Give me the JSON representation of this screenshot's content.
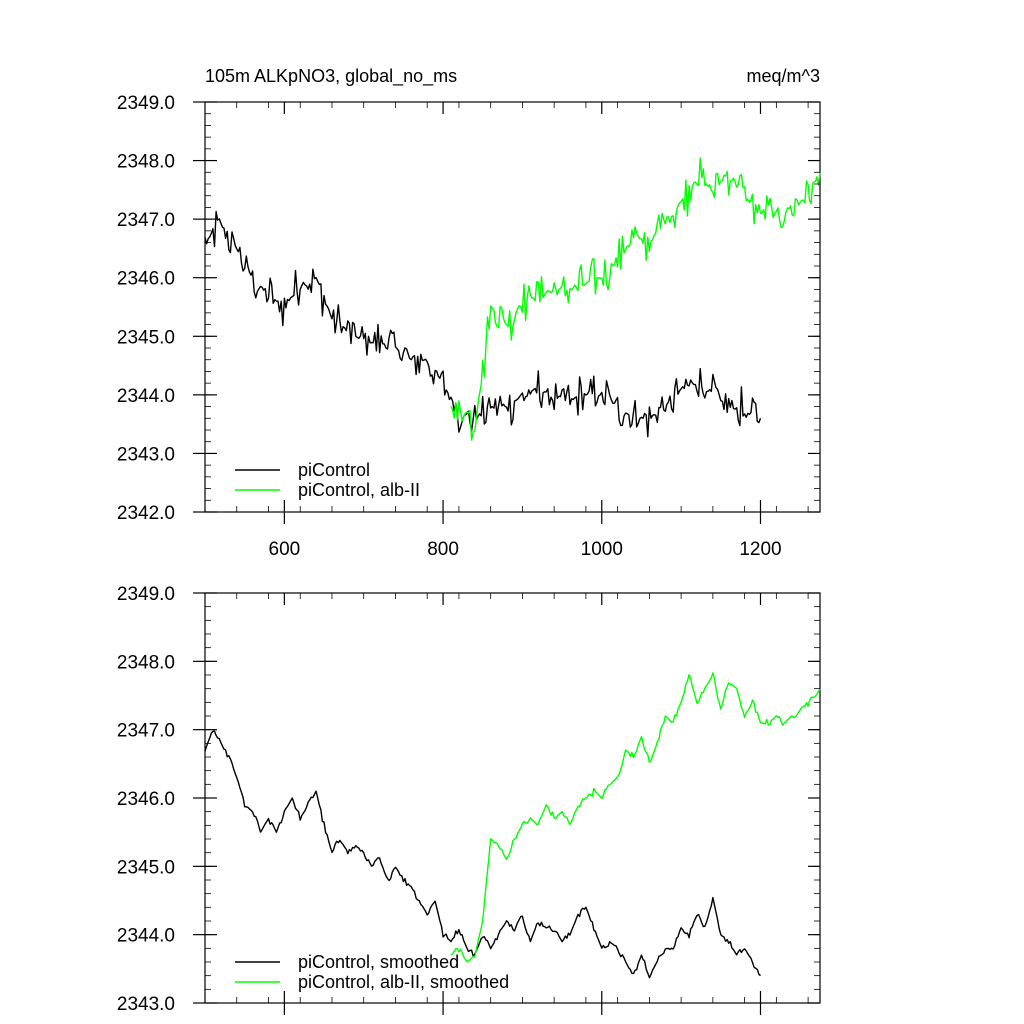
{
  "header": {
    "title_left": "105m ALKpNO3, global_no_ms",
    "title_right": "meq/m^3"
  },
  "chart_data": [
    {
      "type": "line",
      "xlim": [
        500,
        1275
      ],
      "ylim": [
        2342.0,
        2349.0
      ],
      "x_ticks": [
        600,
        800,
        1000,
        1200
      ],
      "x_tick_labels": [
        "600",
        "800",
        "1000",
        "1200"
      ],
      "y_ticks": [
        2342.0,
        2343.0,
        2344.0,
        2345.0,
        2346.0,
        2347.0,
        2348.0,
        2349.0
      ],
      "y_tick_labels": [
        "2342.0",
        "2343.0",
        "2344.0",
        "2345.0",
        "2346.0",
        "2347.0",
        "2348.0",
        "2349.0"
      ],
      "legend_position": "bottom-left",
      "series": [
        {
          "name": "piControl",
          "color": "#000000",
          "x": [
            500,
            520,
            540,
            560,
            580,
            600,
            620,
            640,
            660,
            680,
            700,
            720,
            740,
            760,
            780,
            800,
            820,
            840,
            860,
            880,
            900,
            920,
            940,
            960,
            980,
            1000,
            1020,
            1040,
            1060,
            1080,
            1100,
            1120,
            1140,
            1160,
            1180,
            1200
          ],
          "y": [
            2346.6,
            2346.9,
            2346.5,
            2346.0,
            2345.7,
            2345.5,
            2345.9,
            2346.0,
            2345.3,
            2345.1,
            2344.9,
            2344.9,
            2344.8,
            2344.6,
            2344.6,
            2344.2,
            2343.7,
            2343.6,
            2343.8,
            2343.8,
            2344.0,
            2344.1,
            2344.0,
            2343.9,
            2344.0,
            2344.0,
            2343.8,
            2343.6,
            2343.6,
            2343.8,
            2344.1,
            2344.2,
            2344.0,
            2343.8,
            2343.7,
            2343.6
          ]
        },
        {
          "name": "piControl, alb-II",
          "color": "#00ff00",
          "x": [
            810,
            820,
            830,
            840,
            850,
            860,
            870,
            880,
            900,
            920,
            940,
            960,
            980,
            1000,
            1020,
            1040,
            1060,
            1080,
            1100,
            1120,
            1140,
            1160,
            1180,
            1200,
            1220,
            1240,
            1260,
            1275
          ],
          "y": [
            2343.8,
            2343.6,
            2343.7,
            2343.5,
            2344.4,
            2345.5,
            2345.4,
            2345.2,
            2345.6,
            2345.7,
            2345.8,
            2345.8,
            2345.9,
            2346.0,
            2346.3,
            2346.7,
            2346.6,
            2347.0,
            2347.3,
            2347.7,
            2347.5,
            2347.8,
            2347.4,
            2347.1,
            2347.1,
            2347.2,
            2347.4,
            2347.8
          ]
        }
      ]
    },
    {
      "type": "line",
      "xlim": [
        500,
        1275
      ],
      "ylim": [
        2343.0,
        2349.0
      ],
      "x_ticks": [
        600,
        800,
        1000,
        1200
      ],
      "y_ticks": [
        2343.0,
        2344.0,
        2345.0,
        2346.0,
        2347.0,
        2348.0,
        2349.0
      ],
      "y_tick_labels": [
        "2343.0",
        "2344.0",
        "2345.0",
        "2346.0",
        "2347.0",
        "2348.0",
        "2349.0"
      ],
      "legend_position": "bottom-left",
      "series": [
        {
          "name": "piControl, smoothed",
          "color": "#000000",
          "x": [
            500,
            510,
            520,
            530,
            540,
            550,
            560,
            570,
            580,
            590,
            600,
            610,
            620,
            630,
            640,
            650,
            660,
            670,
            680,
            690,
            700,
            710,
            720,
            730,
            740,
            750,
            760,
            770,
            780,
            790,
            800,
            810,
            820,
            830,
            840,
            850,
            860,
            870,
            880,
            890,
            900,
            910,
            920,
            930,
            940,
            950,
            960,
            970,
            980,
            990,
            1000,
            1010,
            1020,
            1030,
            1040,
            1050,
            1060,
            1070,
            1080,
            1090,
            1100,
            1110,
            1120,
            1130,
            1140,
            1150,
            1160,
            1170,
            1180,
            1190,
            1200
          ],
          "y": [
            2346.7,
            2347.0,
            2346.8,
            2346.6,
            2346.3,
            2345.9,
            2345.8,
            2345.5,
            2345.7,
            2345.5,
            2345.8,
            2346.0,
            2345.7,
            2345.9,
            2346.1,
            2345.6,
            2345.2,
            2345.4,
            2345.2,
            2345.3,
            2345.2,
            2345.0,
            2345.1,
            2344.8,
            2345.0,
            2344.8,
            2344.7,
            2344.5,
            2344.3,
            2344.5,
            2344.0,
            2343.9,
            2344.1,
            2343.8,
            2343.7,
            2344.0,
            2343.8,
            2344.0,
            2344.2,
            2344.1,
            2344.3,
            2343.9,
            2344.2,
            2344.1,
            2344.1,
            2343.9,
            2344.0,
            2344.3,
            2344.4,
            2344.1,
            2343.8,
            2343.9,
            2343.8,
            2343.6,
            2343.4,
            2343.7,
            2343.4,
            2343.6,
            2343.8,
            2343.8,
            2344.1,
            2344.0,
            2344.3,
            2344.1,
            2344.5,
            2344.0,
            2343.9,
            2343.7,
            2343.8,
            2343.6,
            2343.4
          ]
        },
        {
          "name": "piControl, alb-II, smoothed",
          "color": "#00ff00",
          "x": [
            810,
            820,
            830,
            840,
            850,
            860,
            870,
            880,
            890,
            900,
            910,
            920,
            930,
            940,
            950,
            960,
            970,
            980,
            990,
            1000,
            1010,
            1020,
            1030,
            1040,
            1050,
            1060,
            1070,
            1080,
            1090,
            1100,
            1110,
            1120,
            1130,
            1140,
            1150,
            1160,
            1170,
            1180,
            1190,
            1200,
            1210,
            1220,
            1230,
            1240,
            1250,
            1260,
            1270,
            1275
          ],
          "y": [
            2343.7,
            2343.8,
            2343.6,
            2343.7,
            2344.2,
            2345.4,
            2345.3,
            2345.1,
            2345.4,
            2345.6,
            2345.7,
            2345.6,
            2345.9,
            2345.7,
            2345.8,
            2345.6,
            2345.9,
            2346.0,
            2346.1,
            2346.0,
            2346.2,
            2346.3,
            2346.7,
            2346.6,
            2346.9,
            2346.5,
            2346.8,
            2347.2,
            2347.1,
            2347.4,
            2347.8,
            2347.4,
            2347.6,
            2347.8,
            2347.3,
            2347.7,
            2347.6,
            2347.2,
            2347.4,
            2347.1,
            2347.1,
            2347.2,
            2347.1,
            2347.2,
            2347.3,
            2347.4,
            2347.5,
            2347.6
          ]
        }
      ]
    }
  ]
}
